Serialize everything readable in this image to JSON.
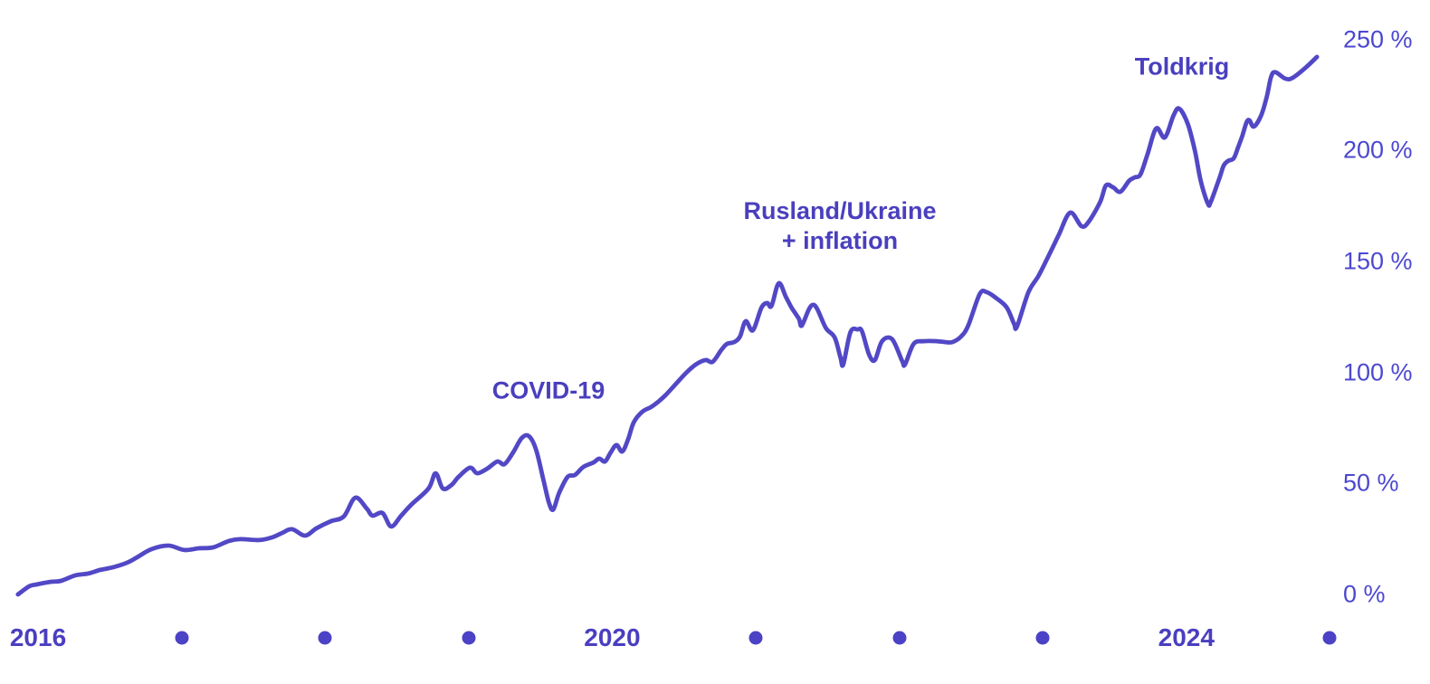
{
  "chart_data": {
    "type": "line",
    "unit": "%",
    "grid": false,
    "legend": false,
    "xlim_years": [
      2015.85,
      2025.1
    ],
    "ylim": [
      0,
      250
    ],
    "colors": {
      "line": "#5248c6",
      "year_labels": "#4a3fc0",
      "pct_labels": "#4c48d0",
      "dots": "#4b42c6",
      "annotations": "#4a3fbe",
      "background": "#ffffff"
    },
    "y_axis": {
      "side": "right",
      "ticks": [
        {
          "value": 250,
          "label": "250 %"
        },
        {
          "value": 200,
          "label": "200 %"
        },
        {
          "value": 150,
          "label": "150 %"
        },
        {
          "value": 100,
          "label": "100 %"
        },
        {
          "value": 50,
          "label": "50 %"
        },
        {
          "value": 0,
          "label": "0 %"
        }
      ]
    },
    "x_axis": {
      "markers": [
        {
          "year": 2016,
          "label": "2016"
        },
        {
          "year": 2017,
          "dot": true
        },
        {
          "year": 2018,
          "dot": true
        },
        {
          "year": 2019,
          "dot": true
        },
        {
          "year": 2020,
          "label": "2020"
        },
        {
          "year": 2021,
          "dot": true
        },
        {
          "year": 2022,
          "dot": true
        },
        {
          "year": 2023,
          "dot": true
        },
        {
          "year": 2024,
          "label": "2024"
        },
        {
          "year": 2025,
          "dot": true
        }
      ]
    },
    "annotations": [
      {
        "label": "COVID-19",
        "year": 2019.56,
        "pct": 92
      },
      {
        "lines": [
          "Rusland/Ukraine",
          "+ inflation"
        ],
        "year": 2021.59,
        "pct": 166
      },
      {
        "label": "Toldkrig",
        "year": 2023.97,
        "pct": 237
      }
    ],
    "series": [
      {
        "points": [
          [
            2015.86,
            0
          ],
          [
            2015.94,
            3.7
          ],
          [
            2015.99,
            4.5
          ],
          [
            2016.09,
            5.7
          ],
          [
            2016.16,
            6.1
          ],
          [
            2016.26,
            8.6
          ],
          [
            2016.35,
            9.4
          ],
          [
            2016.43,
            11.0
          ],
          [
            2016.52,
            12.2
          ],
          [
            2016.62,
            14.3
          ],
          [
            2016.69,
            16.7
          ],
          [
            2016.79,
            20.4
          ],
          [
            2016.91,
            22.0
          ],
          [
            2017.02,
            20.0
          ],
          [
            2017.12,
            20.8
          ],
          [
            2017.22,
            21.2
          ],
          [
            2017.33,
            24.1
          ],
          [
            2017.41,
            24.9
          ],
          [
            2017.54,
            24.5
          ],
          [
            2017.63,
            25.7
          ],
          [
            2017.7,
            27.7
          ],
          [
            2017.77,
            29.4
          ],
          [
            2017.86,
            26.5
          ],
          [
            2017.94,
            29.8
          ],
          [
            2018.04,
            33.0
          ],
          [
            2018.13,
            35.1
          ],
          [
            2018.21,
            43.6
          ],
          [
            2018.29,
            38.7
          ],
          [
            2018.33,
            35.5
          ],
          [
            2018.4,
            36.7
          ],
          [
            2018.46,
            30.6
          ],
          [
            2018.53,
            35.5
          ],
          [
            2018.6,
            40.4
          ],
          [
            2018.72,
            47.7
          ],
          [
            2018.77,
            54.6
          ],
          [
            2018.82,
            47.7
          ],
          [
            2018.88,
            49.3
          ],
          [
            2018.93,
            53.0
          ],
          [
            2019.01,
            57.1
          ],
          [
            2019.06,
            54.6
          ],
          [
            2019.13,
            56.7
          ],
          [
            2019.2,
            59.9
          ],
          [
            2019.25,
            58.7
          ],
          [
            2019.31,
            64.0
          ],
          [
            2019.37,
            70.5
          ],
          [
            2019.42,
            71.3
          ],
          [
            2019.47,
            65.2
          ],
          [
            2019.52,
            51.8
          ],
          [
            2019.56,
            41.2
          ],
          [
            2019.59,
            38.3
          ],
          [
            2019.63,
            45.7
          ],
          [
            2019.69,
            53.0
          ],
          [
            2019.74,
            53.8
          ],
          [
            2019.8,
            57.5
          ],
          [
            2019.87,
            59.5
          ],
          [
            2019.91,
            61.2
          ],
          [
            2019.95,
            59.9
          ],
          [
            2019.99,
            64.0
          ],
          [
            2020.03,
            67.3
          ],
          [
            2020.07,
            64.4
          ],
          [
            2020.11,
            69.7
          ],
          [
            2020.15,
            77.5
          ],
          [
            2020.21,
            82.3
          ],
          [
            2020.27,
            84.4
          ],
          [
            2020.32,
            86.8
          ],
          [
            2020.37,
            89.7
          ],
          [
            2020.44,
            94.6
          ],
          [
            2020.51,
            99.5
          ],
          [
            2020.58,
            103.5
          ],
          [
            2020.65,
            105.6
          ],
          [
            2020.7,
            104.8
          ],
          [
            2020.76,
            110.1
          ],
          [
            2020.8,
            112.9
          ],
          [
            2020.85,
            113.7
          ],
          [
            2020.89,
            116.2
          ],
          [
            2020.93,
            123.1
          ],
          [
            2020.98,
            119.0
          ],
          [
            2021.04,
            129.2
          ],
          [
            2021.08,
            131.3
          ],
          [
            2021.11,
            130.0
          ],
          [
            2021.16,
            140.2
          ],
          [
            2021.21,
            134.1
          ],
          [
            2021.25,
            129.2
          ],
          [
            2021.3,
            124.3
          ],
          [
            2021.32,
            121.1
          ],
          [
            2021.37,
            128.4
          ],
          [
            2021.4,
            130.5
          ],
          [
            2021.43,
            128.4
          ],
          [
            2021.49,
            119.9
          ],
          [
            2021.55,
            115.8
          ],
          [
            2021.59,
            106.8
          ],
          [
            2021.61,
            103.6
          ],
          [
            2021.66,
            118.2
          ],
          [
            2021.71,
            119.4
          ],
          [
            2021.74,
            118.6
          ],
          [
            2021.79,
            108.0
          ],
          [
            2021.83,
            105.6
          ],
          [
            2021.88,
            114.1
          ],
          [
            2021.95,
            115.0
          ],
          [
            2022.02,
            105.2
          ],
          [
            2022.04,
            103.6
          ],
          [
            2022.1,
            112.9
          ],
          [
            2022.17,
            114.1
          ],
          [
            2022.26,
            114.1
          ],
          [
            2022.32,
            113.7
          ],
          [
            2022.37,
            113.7
          ],
          [
            2022.43,
            116.2
          ],
          [
            2022.48,
            121.1
          ],
          [
            2022.56,
            135.3
          ],
          [
            2022.61,
            136.2
          ],
          [
            2022.68,
            133.3
          ],
          [
            2022.75,
            129.2
          ],
          [
            2022.8,
            121.9
          ],
          [
            2022.82,
            120.7
          ],
          [
            2022.9,
            136.2
          ],
          [
            2022.97,
            143.5
          ],
          [
            2023.04,
            152.5
          ],
          [
            2023.11,
            161.8
          ],
          [
            2023.19,
            172.0
          ],
          [
            2023.27,
            165.9
          ],
          [
            2023.32,
            168.0
          ],
          [
            2023.4,
            176.9
          ],
          [
            2023.44,
            184.3
          ],
          [
            2023.49,
            183.4
          ],
          [
            2023.54,
            181.4
          ],
          [
            2023.6,
            186.3
          ],
          [
            2023.64,
            187.9
          ],
          [
            2023.68,
            189.2
          ],
          [
            2023.73,
            198.5
          ],
          [
            2023.79,
            210.0
          ],
          [
            2023.85,
            205.9
          ],
          [
            2023.91,
            215.7
          ],
          [
            2023.95,
            218.9
          ],
          [
            2024.01,
            212.0
          ],
          [
            2024.06,
            199.8
          ],
          [
            2024.1,
            186.3
          ],
          [
            2024.15,
            176.1
          ],
          [
            2024.17,
            176.9
          ],
          [
            2024.23,
            187.5
          ],
          [
            2024.26,
            193.2
          ],
          [
            2024.29,
            195.3
          ],
          [
            2024.33,
            196.5
          ],
          [
            2024.36,
            201.4
          ],
          [
            2024.39,
            206.7
          ],
          [
            2024.42,
            212.8
          ],
          [
            2024.44,
            213.6
          ],
          [
            2024.47,
            210.8
          ],
          [
            2024.52,
            215.7
          ],
          [
            2024.56,
            224.2
          ],
          [
            2024.59,
            233.2
          ],
          [
            2024.62,
            235.3
          ],
          [
            2024.69,
            232.4
          ],
          [
            2024.74,
            232.8
          ],
          [
            2024.83,
            237.3
          ],
          [
            2024.91,
            242.2
          ]
        ]
      }
    ]
  }
}
